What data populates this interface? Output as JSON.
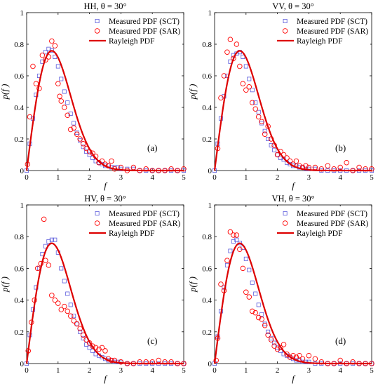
{
  "chart_data": [
    {
      "type": "scatter",
      "title": "HH, θ = 30°",
      "xlabel": "f",
      "ylabel": "p(f )",
      "panel_tag": "(a)",
      "xlim": [
        0,
        5
      ],
      "ylim": [
        0,
        1
      ],
      "xticks": [
        "0",
        "1",
        "2",
        "3",
        "4",
        "5"
      ],
      "yticks": [
        "0",
        "0.2",
        "0.4",
        "0.6",
        "0.8",
        "1"
      ],
      "legend": [
        {
          "label": "Measured PDF (SCT)",
          "marker": "square",
          "color": "#5b5bdc"
        },
        {
          "label": "Measured PDF (SAR)",
          "marker": "circle",
          "color": "#ff0000"
        },
        {
          "label": "Rayleigh PDF",
          "marker": "line",
          "color": "#dd0000"
        }
      ],
      "legend_position": "top-right",
      "series": [
        {
          "name": "Measured PDF (SCT)",
          "marker": "square",
          "color": "#5b5bdc",
          "x": [
            0.0,
            0.1,
            0.2,
            0.3,
            0.4,
            0.5,
            0.6,
            0.7,
            0.8,
            0.9,
            1.0,
            1.1,
            1.2,
            1.3,
            1.4,
            1.5,
            1.6,
            1.7,
            1.8,
            1.9,
            2.0,
            2.1,
            2.2,
            2.3,
            2.4,
            2.5,
            2.6,
            2.7,
            2.8,
            2.9,
            3.0,
            3.2,
            3.4,
            3.6,
            3.8,
            4.0,
            4.2,
            4.4,
            4.6,
            4.8,
            5.0
          ],
          "y": [
            0.0,
            0.17,
            0.33,
            0.48,
            0.6,
            0.69,
            0.75,
            0.77,
            0.76,
            0.72,
            0.66,
            0.58,
            0.5,
            0.43,
            0.36,
            0.3,
            0.24,
            0.19,
            0.15,
            0.12,
            0.1,
            0.08,
            0.06,
            0.05,
            0.04,
            0.03,
            0.03,
            0.02,
            0.02,
            0.02,
            0.01,
            0.01,
            0.01,
            0.0,
            0.0,
            0.0,
            0.0,
            0.0,
            0.0,
            0.0,
            0.0
          ]
        },
        {
          "name": "Measured PDF (SAR)",
          "marker": "circle",
          "color": "#ff0000",
          "x": [
            0.03,
            0.1,
            0.2,
            0.3,
            0.4,
            0.5,
            0.6,
            0.7,
            0.8,
            0.9,
            1.0,
            1.05,
            1.1,
            1.2,
            1.3,
            1.4,
            1.5,
            1.6,
            1.7,
            1.8,
            1.9,
            2.0,
            2.1,
            2.2,
            2.3,
            2.4,
            2.5,
            2.6,
            2.7,
            2.8,
            3.0,
            3.2,
            3.4,
            3.6,
            3.8,
            4.0,
            4.2,
            4.4,
            4.6,
            4.8,
            5.0
          ],
          "y": [
            0.04,
            0.34,
            0.66,
            0.55,
            0.52,
            0.73,
            0.7,
            0.72,
            0.82,
            0.79,
            0.55,
            0.47,
            0.44,
            0.4,
            0.35,
            0.26,
            0.27,
            0.23,
            0.2,
            0.17,
            0.14,
            0.12,
            0.11,
            0.09,
            0.05,
            0.06,
            0.04,
            0.03,
            0.06,
            0.01,
            0.02,
            0.0,
            0.02,
            0.0,
            0.01,
            0.0,
            0.0,
            0.0,
            0.01,
            0.0,
            0.01
          ]
        }
      ]
    },
    {
      "type": "scatter",
      "title": "VV, θ = 30°",
      "xlabel": "f",
      "ylabel": "p(f )",
      "panel_tag": "(b)",
      "xlim": [
        0,
        5
      ],
      "ylim": [
        0,
        1
      ],
      "xticks": [
        "0",
        "1",
        "2",
        "3",
        "4",
        "5"
      ],
      "yticks": [
        "0",
        "0.2",
        "0.4",
        "0.6",
        "0.8",
        "1"
      ],
      "legend": [
        {
          "label": "Measured PDF (SCT)",
          "marker": "square",
          "color": "#5b5bdc"
        },
        {
          "label": "Measured PDF (SAR)",
          "marker": "circle",
          "color": "#ff0000"
        },
        {
          "label": "Rayleigh PDF",
          "marker": "line",
          "color": "#dd0000"
        }
      ],
      "legend_position": "top-right",
      "series": [
        {
          "name": "Measured PDF (SCT)",
          "marker": "square",
          "color": "#5b5bdc",
          "x": [
            0.0,
            0.1,
            0.2,
            0.3,
            0.4,
            0.5,
            0.6,
            0.7,
            0.8,
            0.9,
            1.0,
            1.1,
            1.2,
            1.3,
            1.4,
            1.5,
            1.6,
            1.7,
            1.8,
            1.9,
            2.0,
            2.1,
            2.2,
            2.3,
            2.4,
            2.5,
            2.6,
            2.7,
            2.8,
            2.9,
            3.0,
            3.2,
            3.4,
            3.6,
            3.8,
            4.0,
            4.2,
            4.4,
            4.6,
            4.8,
            5.0
          ],
          "y": [
            0.0,
            0.17,
            0.33,
            0.47,
            0.6,
            0.69,
            0.73,
            0.74,
            0.75,
            0.72,
            0.66,
            0.58,
            0.51,
            0.43,
            0.37,
            0.3,
            0.25,
            0.2,
            0.16,
            0.13,
            0.1,
            0.08,
            0.07,
            0.05,
            0.04,
            0.03,
            0.03,
            0.02,
            0.02,
            0.01,
            0.01,
            0.01,
            0.0,
            0.0,
            0.0,
            0.0,
            0.0,
            0.0,
            0.0,
            0.0,
            0.0
          ]
        },
        {
          "name": "Measured PDF (SAR)",
          "marker": "circle",
          "color": "#ff0000",
          "x": [
            0.1,
            0.2,
            0.3,
            0.4,
            0.5,
            0.6,
            0.7,
            0.8,
            0.9,
            1.0,
            1.1,
            1.2,
            1.3,
            1.4,
            1.5,
            1.6,
            1.7,
            1.8,
            1.9,
            2.0,
            2.1,
            2.2,
            2.3,
            2.4,
            2.5,
            2.6,
            2.7,
            2.8,
            2.9,
            3.0,
            3.2,
            3.4,
            3.6,
            3.8,
            4.0,
            4.2,
            4.4,
            4.6,
            4.8,
            5.0
          ],
          "y": [
            0.14,
            0.46,
            0.6,
            0.75,
            0.83,
            0.71,
            0.8,
            0.66,
            0.55,
            0.51,
            0.53,
            0.43,
            0.39,
            0.34,
            0.31,
            0.23,
            0.28,
            0.2,
            0.16,
            0.1,
            0.12,
            0.1,
            0.08,
            0.06,
            0.04,
            0.06,
            0.03,
            0.02,
            0.03,
            0.02,
            0.02,
            0.01,
            0.03,
            0.01,
            0.02,
            0.05,
            0.0,
            0.02,
            0.01,
            0.01
          ]
        }
      ]
    },
    {
      "type": "scatter",
      "title": "HV, θ = 30°",
      "xlabel": "f",
      "ylabel": "p(f )",
      "panel_tag": "(c)",
      "xlim": [
        0,
        5
      ],
      "ylim": [
        0,
        1
      ],
      "xticks": [
        "0",
        "1",
        "2",
        "3",
        "4",
        "5"
      ],
      "yticks": [
        "0",
        "0.2",
        "0.4",
        "0.6",
        "0.8",
        "1"
      ],
      "legend": [
        {
          "label": "Measured PDF (SCT)",
          "marker": "square",
          "color": "#5b5bdc"
        },
        {
          "label": "Measured PDF (SAR)",
          "marker": "circle",
          "color": "#ff0000"
        },
        {
          "label": "Rayleigh PDF",
          "marker": "line",
          "color": "#dd0000"
        }
      ],
      "legend_position": "top-right",
      "series": [
        {
          "name": "Measured PDF (SCT)",
          "marker": "square",
          "color": "#5b5bdc",
          "x": [
            0.0,
            0.1,
            0.2,
            0.3,
            0.4,
            0.5,
            0.6,
            0.7,
            0.8,
            0.9,
            1.0,
            1.1,
            1.2,
            1.3,
            1.4,
            1.5,
            1.6,
            1.7,
            1.8,
            1.9,
            2.0,
            2.1,
            2.2,
            2.3,
            2.4,
            2.5,
            2.6,
            2.7,
            2.8,
            2.9,
            3.0,
            3.2,
            3.4,
            3.6,
            3.8,
            4.0,
            4.2,
            4.4,
            4.6,
            4.8,
            5.0
          ],
          "y": [
            0.0,
            0.18,
            0.34,
            0.48,
            0.6,
            0.69,
            0.74,
            0.77,
            0.78,
            0.78,
            0.7,
            0.6,
            0.52,
            0.44,
            0.37,
            0.3,
            0.25,
            0.2,
            0.16,
            0.12,
            0.1,
            0.08,
            0.06,
            0.05,
            0.04,
            0.03,
            0.02,
            0.02,
            0.01,
            0.01,
            0.01,
            0.0,
            0.0,
            0.0,
            0.0,
            0.0,
            0.0,
            0.0,
            0.0,
            0.0,
            0.0
          ]
        },
        {
          "name": "Measured PDF (SAR)",
          "marker": "circle",
          "color": "#ff0000",
          "x": [
            0.05,
            0.15,
            0.25,
            0.35,
            0.45,
            0.55,
            0.6,
            0.7,
            0.8,
            0.9,
            1.0,
            1.1,
            1.2,
            1.3,
            1.4,
            1.5,
            1.6,
            1.7,
            1.8,
            1.9,
            2.0,
            2.1,
            2.2,
            2.3,
            2.4,
            2.5,
            2.6,
            2.7,
            2.8,
            3.0,
            3.2,
            3.4,
            3.6,
            3.8,
            4.0,
            4.2,
            4.4,
            4.6,
            4.8,
            5.0
          ],
          "y": [
            0.08,
            0.26,
            0.4,
            0.6,
            0.63,
            0.91,
            0.65,
            0.62,
            0.43,
            0.4,
            0.38,
            0.34,
            0.36,
            0.33,
            0.3,
            0.27,
            0.25,
            0.22,
            0.18,
            0.15,
            0.13,
            0.11,
            0.1,
            0.09,
            0.1,
            0.08,
            0.03,
            0.02,
            0.02,
            0.01,
            0.0,
            0.0,
            0.01,
            0.01,
            0.01,
            0.02,
            0.01,
            0.01,
            0.0,
            0.0
          ]
        }
      ]
    },
    {
      "type": "scatter",
      "title": "VH, θ = 30°",
      "xlabel": "f",
      "ylabel": "p(f )",
      "panel_tag": "(d)",
      "xlim": [
        0,
        5
      ],
      "ylim": [
        0,
        1
      ],
      "xticks": [
        "0",
        "1",
        "2",
        "3",
        "4",
        "5"
      ],
      "yticks": [
        "0",
        "0.2",
        "0.4",
        "0.6",
        "0.8",
        "1"
      ],
      "legend": [
        {
          "label": "Measured PDF (SCT)",
          "marker": "square",
          "color": "#5b5bdc"
        },
        {
          "label": "Measured PDF (SAR)",
          "marker": "circle",
          "color": "#ff0000"
        },
        {
          "label": "Rayleigh PDF",
          "marker": "line",
          "color": "#dd0000"
        }
      ],
      "legend_position": "top-right",
      "series": [
        {
          "name": "Measured PDF (SCT)",
          "marker": "square",
          "color": "#5b5bdc",
          "x": [
            0.0,
            0.1,
            0.2,
            0.3,
            0.4,
            0.5,
            0.6,
            0.7,
            0.8,
            0.9,
            1.0,
            1.1,
            1.2,
            1.3,
            1.4,
            1.5,
            1.6,
            1.7,
            1.8,
            1.9,
            2.0,
            2.1,
            2.2,
            2.3,
            2.4,
            2.5,
            2.6,
            2.7,
            2.8,
            2.9,
            3.0,
            3.2,
            3.4,
            3.6,
            3.8,
            4.0,
            4.2,
            4.4,
            4.6,
            4.8,
            5.0
          ],
          "y": [
            0.0,
            0.17,
            0.33,
            0.48,
            0.62,
            0.71,
            0.77,
            0.78,
            0.76,
            0.73,
            0.66,
            0.59,
            0.51,
            0.44,
            0.37,
            0.31,
            0.25,
            0.2,
            0.16,
            0.13,
            0.1,
            0.08,
            0.06,
            0.05,
            0.04,
            0.03,
            0.02,
            0.02,
            0.01,
            0.01,
            0.01,
            0.0,
            0.0,
            0.0,
            0.0,
            0.0,
            0.0,
            0.0,
            0.0,
            0.0,
            0.0
          ]
        },
        {
          "name": "Measured PDF (SAR)",
          "marker": "circle",
          "color": "#ff0000",
          "x": [
            0.05,
            0.1,
            0.2,
            0.3,
            0.4,
            0.5,
            0.6,
            0.7,
            0.8,
            0.9,
            1.0,
            1.1,
            1.2,
            1.3,
            1.4,
            1.5,
            1.6,
            1.7,
            1.8,
            1.9,
            2.0,
            2.1,
            2.2,
            2.3,
            2.4,
            2.5,
            2.6,
            2.7,
            2.8,
            3.0,
            3.2,
            3.4,
            3.6,
            3.8,
            4.0,
            4.2,
            4.4,
            4.6,
            4.8,
            5.0
          ],
          "y": [
            0.02,
            0.16,
            0.5,
            0.46,
            0.65,
            0.83,
            0.81,
            0.81,
            0.72,
            0.6,
            0.45,
            0.42,
            0.33,
            0.32,
            0.29,
            0.28,
            0.24,
            0.18,
            0.15,
            0.11,
            0.09,
            0.1,
            0.12,
            0.06,
            0.04,
            0.05,
            0.04,
            0.05,
            0.03,
            0.05,
            0.03,
            0.01,
            0.0,
            0.0,
            0.02,
            0.0,
            0.01,
            0.0,
            0.0,
            0.0
          ]
        }
      ]
    }
  ]
}
